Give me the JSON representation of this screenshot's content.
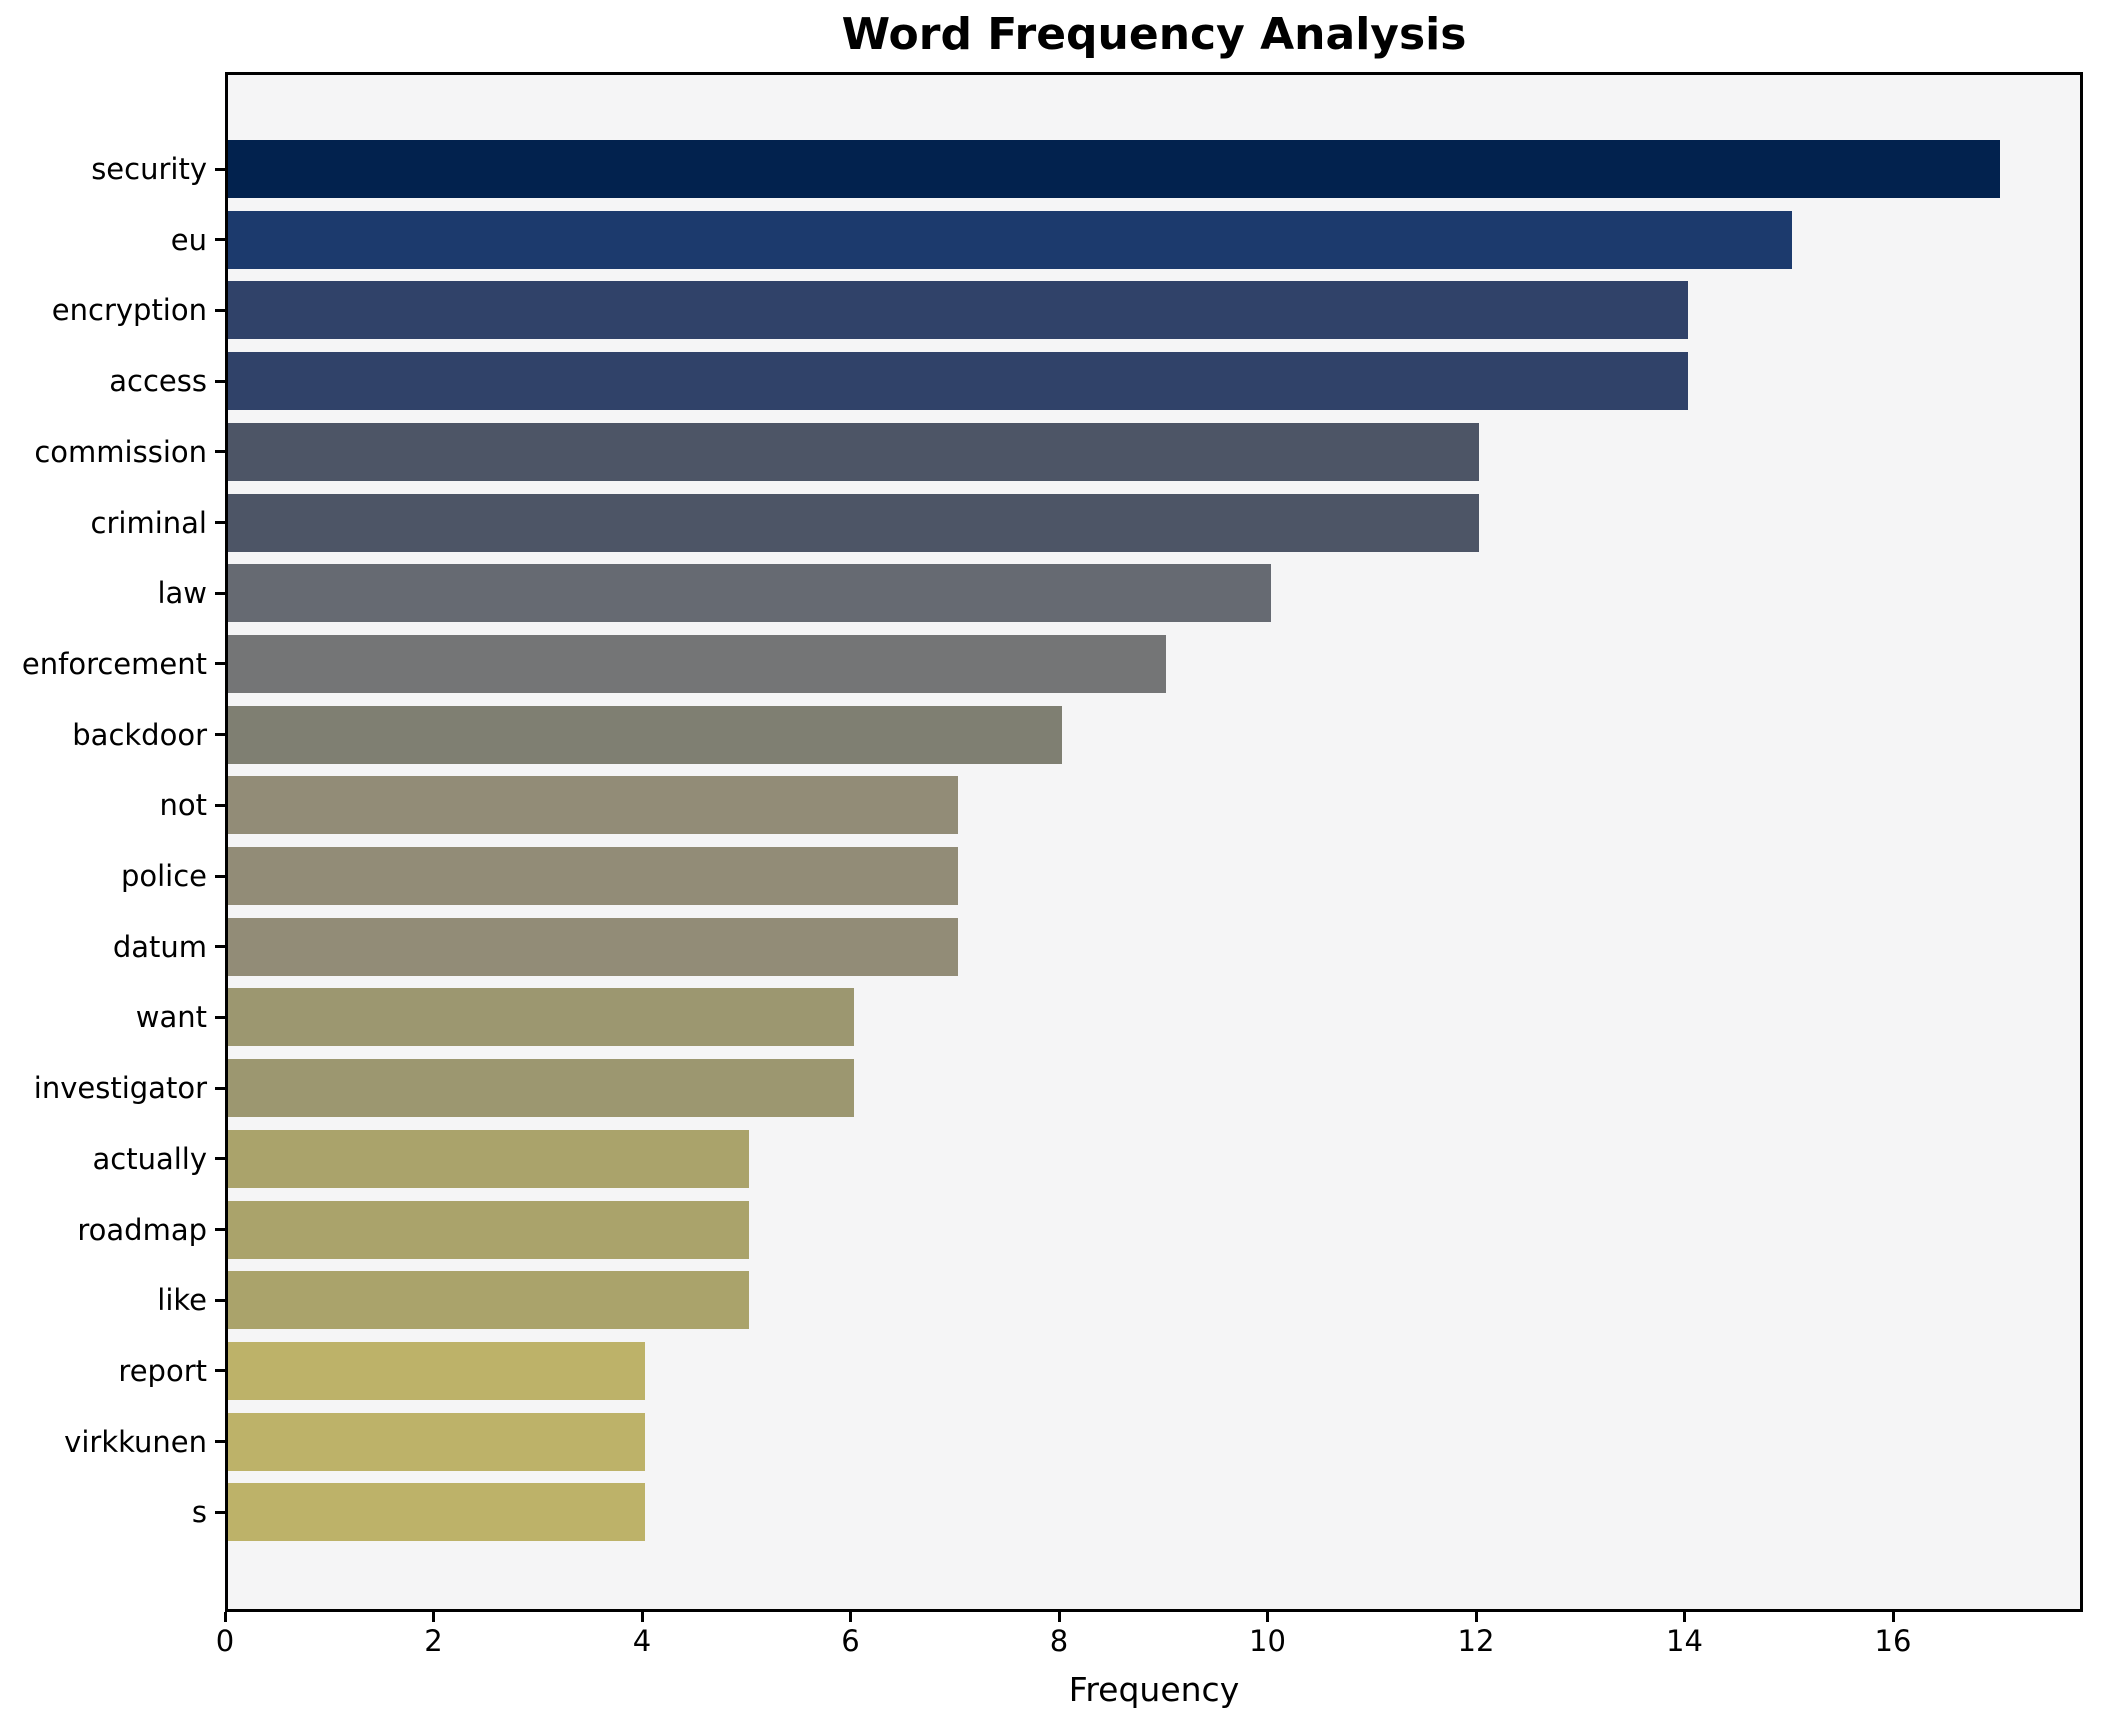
{
  "chart_data": {
    "type": "bar",
    "orientation": "horizontal",
    "title": "Word Frequency Analysis",
    "xlabel": "Frequency",
    "ylabel": "",
    "categories": [
      "security",
      "eu",
      "encryption",
      "access",
      "commission",
      "criminal",
      "law",
      "enforcement",
      "backdoor",
      "not",
      "police",
      "datum",
      "want",
      "investigator",
      "actually",
      "roadmap",
      "like",
      "report",
      "virkkunen",
      "s"
    ],
    "values": [
      17,
      15,
      14,
      14,
      12,
      12,
      10,
      9,
      8,
      7,
      7,
      7,
      6,
      6,
      5,
      5,
      5,
      4,
      4,
      4
    ],
    "bar_colors": [
      "#02224e",
      "#1c3a6d",
      "#304269",
      "#304269",
      "#4d5566",
      "#4d5566",
      "#666a72",
      "#747576",
      "#7f7f72",
      "#928c77",
      "#928c77",
      "#928c77",
      "#9c9770",
      "#9c9770",
      "#aaa36b",
      "#aaa36b",
      "#aaa36b",
      "#bdb269",
      "#bdb269",
      "#bdb269"
    ],
    "xticks": [
      0,
      2,
      4,
      6,
      8,
      10,
      12,
      14,
      16
    ],
    "xlim": [
      0,
      17.8
    ],
    "grid": false,
    "legend": null,
    "plot_background": "#f5f5f6",
    "figure_background": "#ffffff",
    "bar_colormap": "cividis"
  }
}
